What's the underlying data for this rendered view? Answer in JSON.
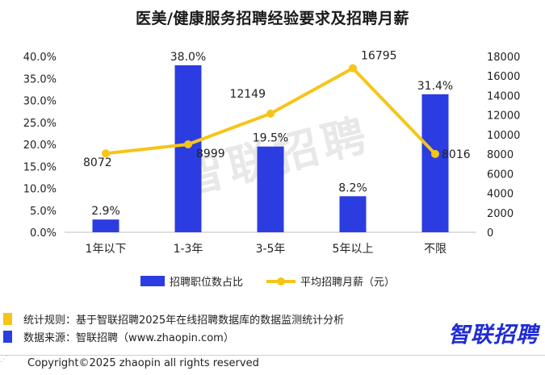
{
  "title": "医美/健康服务招聘经验要求及招聘月薪",
  "watermark": "智联招聘",
  "chart_data": {
    "type": "bar",
    "categories": [
      "1年以下",
      "1-3年",
      "3-5年",
      "5年以上",
      "不限"
    ],
    "series": [
      {
        "name": "招聘职位数占比",
        "kind": "bar",
        "axis": "left",
        "values": [
          2.9,
          38.0,
          19.5,
          8.2,
          31.4
        ],
        "labels": [
          "2.9%",
          "38.0%",
          "19.5%",
          "8.2%",
          "31.4%"
        ],
        "color": "#2b3de0"
      },
      {
        "name": "平均招聘月薪（元）",
        "kind": "line",
        "axis": "right",
        "values": [
          8072,
          8999,
          12149,
          16795,
          8016
        ],
        "labels": [
          "8072",
          "8999",
          "12149",
          "16795",
          "8016"
        ],
        "color": "#f5c518"
      }
    ],
    "y_left": {
      "ylim": [
        0,
        40
      ],
      "ticks": [
        "0.0%",
        "5.0%",
        "10.0%",
        "15.0%",
        "20.0%",
        "25.0%",
        "30.0%",
        "35.0%",
        "40.0%"
      ]
    },
    "y_right": {
      "ylim": [
        0,
        18000
      ],
      "ticks": [
        "0",
        "2000",
        "4000",
        "6000",
        "8000",
        "10000",
        "12000",
        "14000",
        "16000",
        "18000"
      ]
    },
    "grid": false,
    "legend": "bottom"
  },
  "notes": [
    {
      "text": "统计规则：基于智联招聘2025年在线招聘数据库的数据监测统计分析",
      "color": "#f5c518"
    },
    {
      "text": "数据来源：智联招聘（www.zhaopin.com）",
      "color": "#2b3de0"
    }
  ],
  "logo": "智联招聘",
  "copyright": "Copyright©2025 zhaopin all rights reserved"
}
